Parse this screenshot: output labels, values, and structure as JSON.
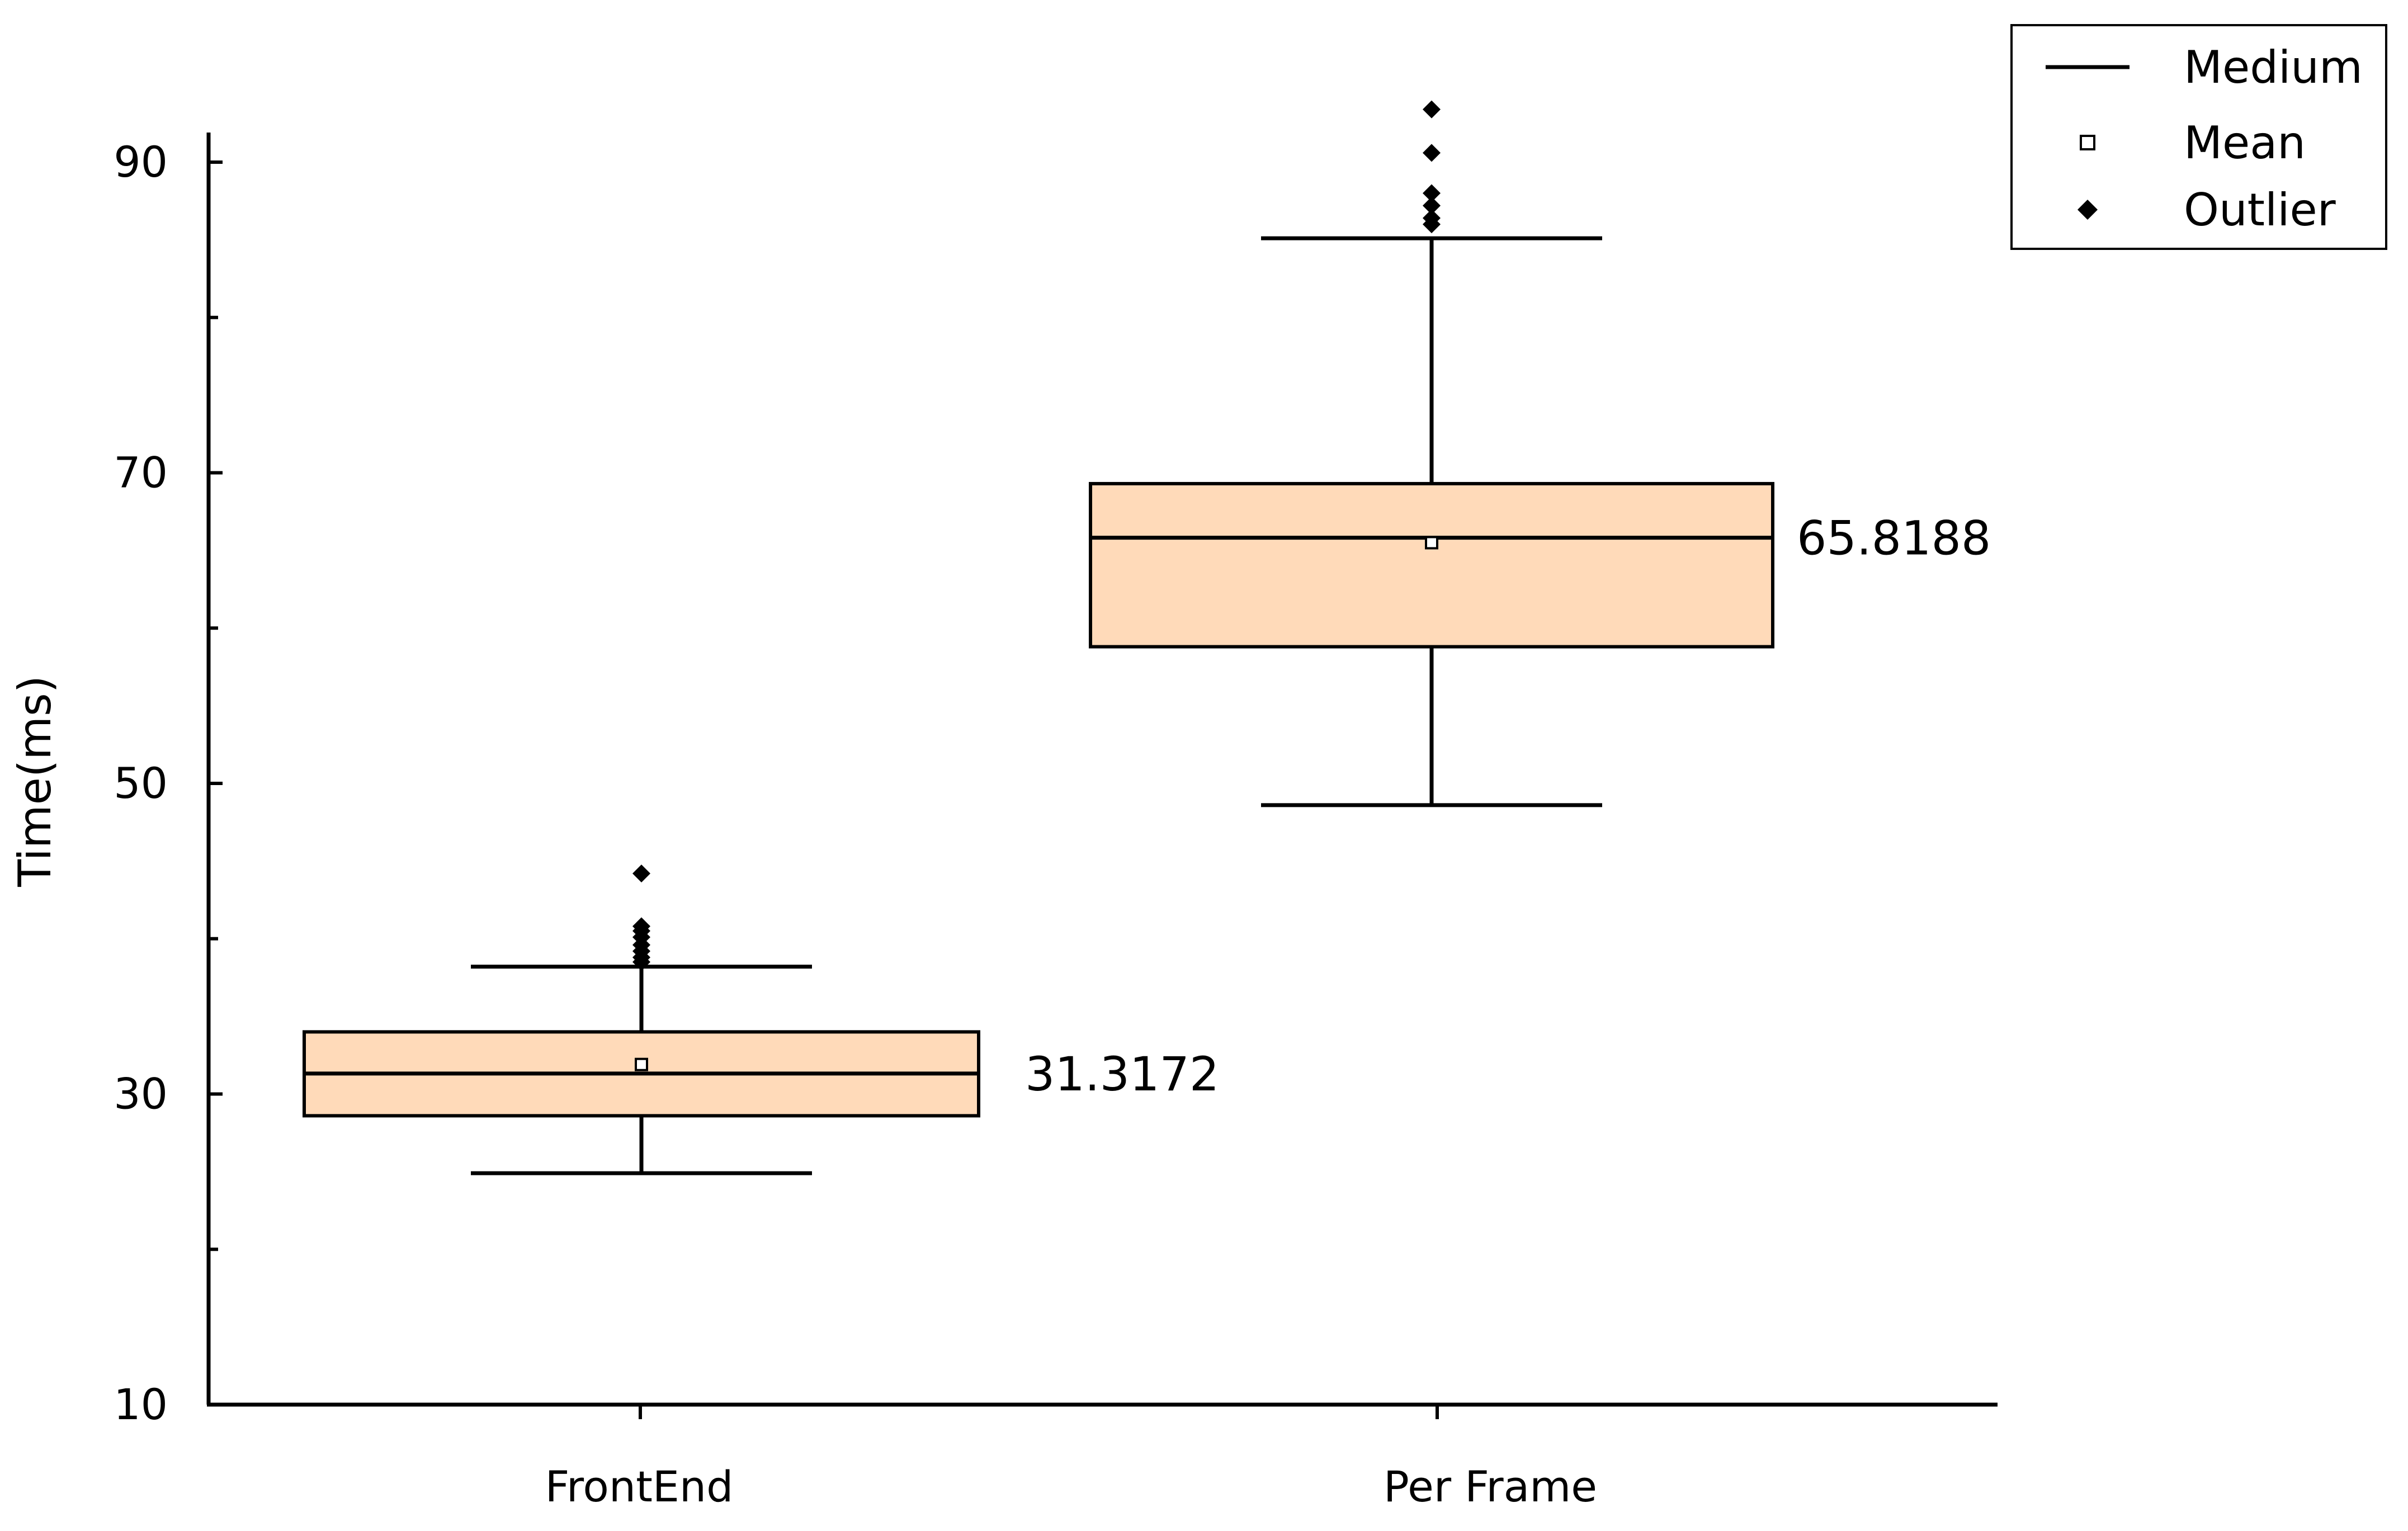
{
  "chart_data": {
    "type": "box",
    "ylabel": "Time(ms)",
    "ylim": [
      10,
      92
    ],
    "yticks": [
      10,
      30,
      50,
      70,
      90
    ],
    "categories": [
      "FrontEnd",
      "Per Frame"
    ],
    "boxes": [
      {
        "category": "FrontEnd",
        "whisker_low": 24.9,
        "q1": 28.6,
        "median": 31.3172,
        "q3": 34.0,
        "whisker_high": 38.2,
        "mean": 31.9,
        "median_label": "31.3172",
        "outliers": [
          38.5,
          38.8,
          39.2,
          39.6,
          40.1,
          40.5,
          40.8,
          44.2
        ]
      },
      {
        "category": "Per Frame",
        "whisker_low": 48.6,
        "q1": 58.8,
        "median": 65.8188,
        "q3": 69.3,
        "whisker_high": 85.1,
        "mean": 65.5,
        "median_label": "65.8188",
        "outliers": [
          86.0,
          86.4,
          87.2,
          88.0,
          90.6,
          93.4
        ]
      }
    ],
    "colors": {
      "box_fill": "#FFDAB9",
      "stroke": "#000000"
    },
    "legend": {
      "position": "top-right",
      "items": [
        {
          "label": "Medium",
          "symbol": "line"
        },
        {
          "label": "Mean",
          "symbol": "open-square"
        },
        {
          "label": "Outlier",
          "symbol": "diamond"
        }
      ]
    }
  }
}
